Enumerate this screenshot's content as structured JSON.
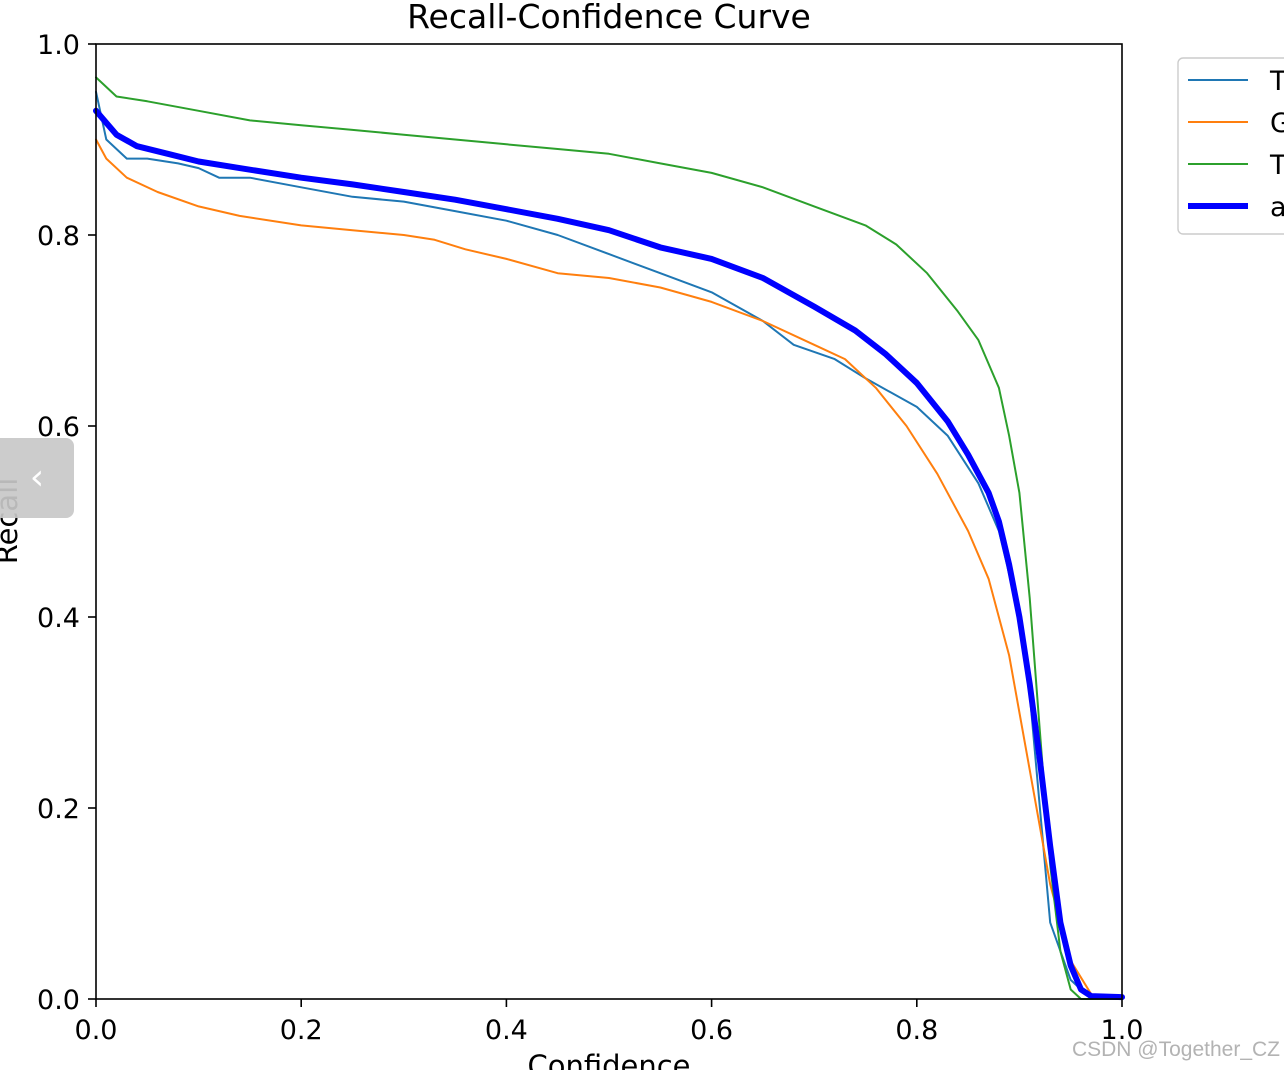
{
  "chart_data": {
    "type": "line",
    "title": "Recall-Confidence Curve",
    "xlabel": "Confidence",
    "ylabel": "Recall",
    "xlim": [
      0,
      1
    ],
    "ylim": [
      0,
      1
    ],
    "xticks": [
      "0.0",
      "0.2",
      "0.4",
      "0.6",
      "0.8",
      "1.0"
    ],
    "yticks": [
      "0.0",
      "0.2",
      "0.4",
      "0.6",
      "0.8",
      "1.0"
    ],
    "grid": false,
    "legend_position": "outside top-right",
    "series": [
      {
        "name": "T",
        "color": "#1f77b4",
        "width": "thin",
        "points": [
          [
            0,
            0.95
          ],
          [
            0.01,
            0.9
          ],
          [
            0.03,
            0.88
          ],
          [
            0.05,
            0.88
          ],
          [
            0.08,
            0.875
          ],
          [
            0.1,
            0.87
          ],
          [
            0.12,
            0.86
          ],
          [
            0.15,
            0.86
          ],
          [
            0.2,
            0.85
          ],
          [
            0.25,
            0.84
          ],
          [
            0.3,
            0.835
          ],
          [
            0.35,
            0.825
          ],
          [
            0.4,
            0.815
          ],
          [
            0.45,
            0.8
          ],
          [
            0.5,
            0.78
          ],
          [
            0.55,
            0.76
          ],
          [
            0.6,
            0.74
          ],
          [
            0.65,
            0.71
          ],
          [
            0.68,
            0.685
          ],
          [
            0.72,
            0.67
          ],
          [
            0.75,
            0.65
          ],
          [
            0.8,
            0.62
          ],
          [
            0.83,
            0.59
          ],
          [
            0.86,
            0.54
          ],
          [
            0.88,
            0.49
          ],
          [
            0.9,
            0.4
          ],
          [
            0.91,
            0.32
          ],
          [
            0.92,
            0.2
          ],
          [
            0.93,
            0.08
          ],
          [
            0.95,
            0.02
          ],
          [
            0.97,
            0
          ],
          [
            1.0,
            0
          ]
        ]
      },
      {
        "name": "G",
        "color": "#ff7f0e",
        "width": "thin",
        "points": [
          [
            0,
            0.9
          ],
          [
            0.01,
            0.88
          ],
          [
            0.03,
            0.86
          ],
          [
            0.06,
            0.845
          ],
          [
            0.1,
            0.83
          ],
          [
            0.14,
            0.82
          ],
          [
            0.2,
            0.81
          ],
          [
            0.25,
            0.805
          ],
          [
            0.3,
            0.8
          ],
          [
            0.33,
            0.795
          ],
          [
            0.36,
            0.785
          ],
          [
            0.4,
            0.775
          ],
          [
            0.45,
            0.76
          ],
          [
            0.5,
            0.755
          ],
          [
            0.55,
            0.745
          ],
          [
            0.6,
            0.73
          ],
          [
            0.65,
            0.71
          ],
          [
            0.7,
            0.685
          ],
          [
            0.73,
            0.67
          ],
          [
            0.76,
            0.64
          ],
          [
            0.79,
            0.6
          ],
          [
            0.82,
            0.55
          ],
          [
            0.85,
            0.49
          ],
          [
            0.87,
            0.44
          ],
          [
            0.89,
            0.36
          ],
          [
            0.91,
            0.24
          ],
          [
            0.93,
            0.12
          ],
          [
            0.95,
            0.04
          ],
          [
            0.97,
            0.005
          ],
          [
            1.0,
            0
          ]
        ]
      },
      {
        "name": "T",
        "color": "#2ca02c",
        "width": "thin",
        "points": [
          [
            0,
            0.965
          ],
          [
            0.02,
            0.945
          ],
          [
            0.05,
            0.94
          ],
          [
            0.1,
            0.93
          ],
          [
            0.15,
            0.92
          ],
          [
            0.2,
            0.915
          ],
          [
            0.25,
            0.91
          ],
          [
            0.3,
            0.905
          ],
          [
            0.35,
            0.9
          ],
          [
            0.4,
            0.895
          ],
          [
            0.45,
            0.89
          ],
          [
            0.5,
            0.885
          ],
          [
            0.55,
            0.875
          ],
          [
            0.6,
            0.865
          ],
          [
            0.65,
            0.85
          ],
          [
            0.7,
            0.83
          ],
          [
            0.75,
            0.81
          ],
          [
            0.78,
            0.79
          ],
          [
            0.81,
            0.76
          ],
          [
            0.84,
            0.72
          ],
          [
            0.86,
            0.69
          ],
          [
            0.88,
            0.64
          ],
          [
            0.89,
            0.59
          ],
          [
            0.9,
            0.53
          ],
          [
            0.91,
            0.42
          ],
          [
            0.92,
            0.28
          ],
          [
            0.93,
            0.14
          ],
          [
            0.94,
            0.05
          ],
          [
            0.95,
            0.01
          ],
          [
            0.96,
            0
          ],
          [
            1.0,
            0
          ]
        ]
      },
      {
        "name": "a",
        "color": "#0000ff",
        "width": "thick",
        "points": [
          [
            0,
            0.93
          ],
          [
            0.02,
            0.905
          ],
          [
            0.04,
            0.893
          ],
          [
            0.07,
            0.885
          ],
          [
            0.1,
            0.877
          ],
          [
            0.14,
            0.87
          ],
          [
            0.2,
            0.86
          ],
          [
            0.25,
            0.853
          ],
          [
            0.3,
            0.845
          ],
          [
            0.35,
            0.837
          ],
          [
            0.4,
            0.827
          ],
          [
            0.45,
            0.817
          ],
          [
            0.5,
            0.805
          ],
          [
            0.55,
            0.787
          ],
          [
            0.6,
            0.775
          ],
          [
            0.65,
            0.755
          ],
          [
            0.7,
            0.725
          ],
          [
            0.74,
            0.7
          ],
          [
            0.77,
            0.675
          ],
          [
            0.8,
            0.645
          ],
          [
            0.83,
            0.605
          ],
          [
            0.85,
            0.57
          ],
          [
            0.87,
            0.53
          ],
          [
            0.88,
            0.5
          ],
          [
            0.89,
            0.455
          ],
          [
            0.9,
            0.4
          ],
          [
            0.91,
            0.33
          ],
          [
            0.92,
            0.25
          ],
          [
            0.93,
            0.16
          ],
          [
            0.94,
            0.08
          ],
          [
            0.95,
            0.035
          ],
          [
            0.96,
            0.01
          ],
          [
            0.97,
            0.003
          ],
          [
            1.0,
            0.002
          ]
        ]
      }
    ]
  },
  "watermark": "CSDN @Together_CZ",
  "sidebar_toggle": {
    "icon": "chevron-left-icon",
    "glyph": "‹"
  }
}
